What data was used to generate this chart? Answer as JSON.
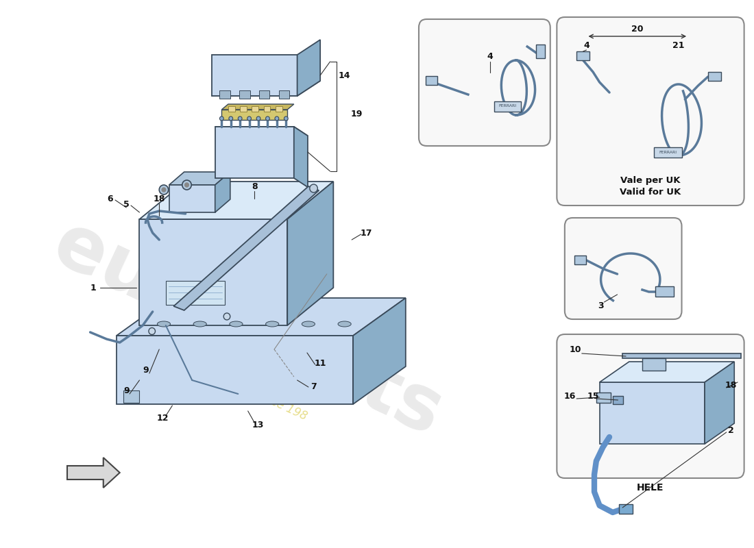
{
  "bg_color": "#ffffff",
  "comp_fill_light": "#c8daf0",
  "comp_fill_mid": "#b0c8de",
  "comp_fill_dark": "#8aaec8",
  "comp_stroke": "#3a4a5a",
  "cable_color": "#5a7a9a",
  "cable_lw": 2.5,
  "label_fs": 9,
  "box_ec": "#888888",
  "box_fc": "#f8f8f8",
  "hele_label": "HELE",
  "uk_label1": "Vale per UK",
  "uk_label2": "Valid for UK",
  "wm_color": "#d8c840",
  "wm_alpha": 0.6,
  "brand_color": "#cccccc",
  "brand_alpha": 0.4
}
